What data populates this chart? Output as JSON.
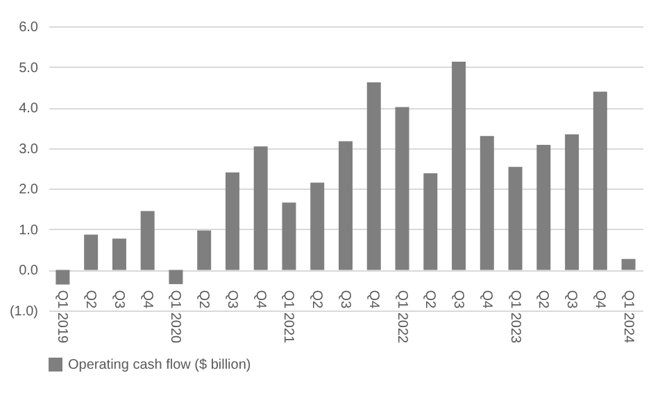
{
  "chart_data": {
    "type": "bar",
    "categories": [
      "Q1 2019",
      "Q2",
      "Q3",
      "Q4",
      "Q1 2020",
      "Q2",
      "Q3",
      "Q4",
      "Q1 2021",
      "Q2",
      "Q3",
      "Q4",
      "Q1 2022",
      "Q2",
      "Q3",
      "Q4",
      "Q1 2023",
      "Q2",
      "Q3",
      "Q4",
      "Q1 2024"
    ],
    "series": [
      {
        "name": "Operating cash flow ($ billion)",
        "color": "#7f7f7f",
        "values": [
          -0.36,
          0.87,
          0.77,
          1.45,
          -0.35,
          0.97,
          2.4,
          3.04,
          1.66,
          2.15,
          3.17,
          4.62,
          4.01,
          2.38,
          5.13,
          3.3,
          2.54,
          3.08,
          3.34,
          4.39,
          0.27
        ]
      }
    ],
    "ylim": [
      -1,
      6
    ],
    "yticks": [
      {
        "value": -1,
        "label": "(1.0)"
      },
      {
        "value": 0,
        "label": "0.0"
      },
      {
        "value": 1,
        "label": "1.0"
      },
      {
        "value": 2,
        "label": "2.0"
      },
      {
        "value": 3,
        "label": "3.0"
      },
      {
        "value": 4,
        "label": "4.0"
      },
      {
        "value": 5,
        "label": "5.0"
      },
      {
        "value": 6,
        "label": "6.0"
      }
    ],
    "grid": "y",
    "legend": "bottom"
  }
}
